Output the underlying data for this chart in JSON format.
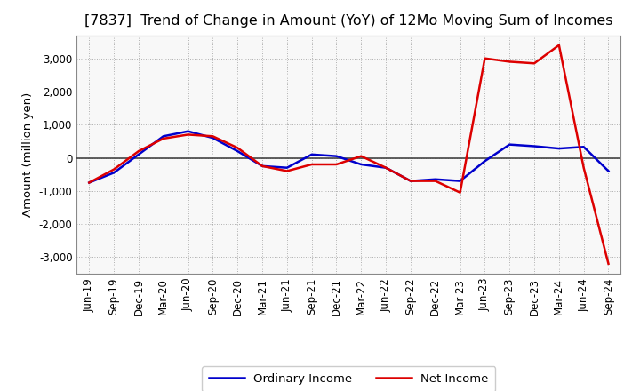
{
  "title": "[7837]  Trend of Change in Amount (YoY) of 12Mo Moving Sum of Incomes",
  "ylabel": "Amount (million yen)",
  "x_labels": [
    "Jun-19",
    "Sep-19",
    "Dec-19",
    "Mar-20",
    "Jun-20",
    "Sep-20",
    "Dec-20",
    "Mar-21",
    "Jun-21",
    "Sep-21",
    "Dec-21",
    "Mar-22",
    "Jun-22",
    "Sep-22",
    "Dec-22",
    "Mar-23",
    "Jun-23",
    "Sep-23",
    "Dec-23",
    "Mar-24",
    "Jun-24",
    "Sep-24"
  ],
  "ordinary_income": [
    -750,
    -450,
    100,
    650,
    800,
    600,
    200,
    -250,
    -300,
    100,
    50,
    -200,
    -300,
    -700,
    -650,
    -700,
    -100,
    400,
    350,
    280,
    330,
    -400
  ],
  "net_income": [
    -750,
    -350,
    200,
    580,
    700,
    650,
    300,
    -250,
    -400,
    -200,
    -200,
    50,
    -300,
    -700,
    -700,
    -1050,
    3000,
    2900,
    2850,
    3400,
    -300,
    -3200
  ],
  "ordinary_color": "#0000cc",
  "net_color": "#dd0000",
  "background_color": "#ffffff",
  "plot_bg_color": "#f8f8f8",
  "grid_color": "#999999",
  "ylim": [
    -3500,
    3700
  ],
  "yticks": [
    -3000,
    -2000,
    -1000,
    0,
    1000,
    2000,
    3000
  ],
  "legend_labels": [
    "Ordinary Income",
    "Net Income"
  ],
  "title_fontsize": 11.5,
  "axis_fontsize": 9.5,
  "tick_fontsize": 8.5,
  "line_width": 1.8
}
